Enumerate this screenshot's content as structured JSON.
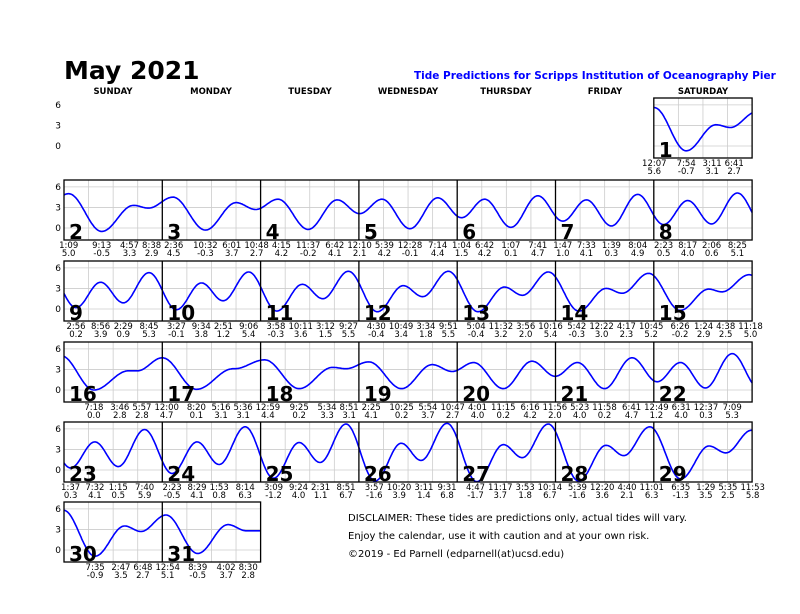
{
  "header": {
    "title": "May 2021",
    "subtitle": "Tide Predictions for Scripps Institution of Oceanography Pier",
    "weekdays": [
      "SUNDAY",
      "MONDAY",
      "TUESDAY",
      "WEDNESDAY",
      "THURSDAY",
      "FRIDAY",
      "SATURDAY"
    ]
  },
  "disclaimer": {
    "line1": "DISCLAIMER: These tides are predictions only, actual tides will vary.",
    "line2": "Enjoy the calendar, use it with caution and at your own risk.",
    "line3": "©2019 - Ed Parnell (edparnell(at)ucsd.edu)"
  },
  "colors": {
    "curve": "#0000ff",
    "grid": "#cccccc",
    "subtitle": "#0000ff"
  },
  "chart_data": {
    "type": "line",
    "yticks": [
      6,
      3,
      0
    ],
    "ylim": [
      -1.75,
      7
    ],
    "grid": true,
    "first_weekday": "SATURDAY",
    "days": [
      {
        "day": 1,
        "extremes": [
          [
            "12:07",
            5.6
          ],
          [
            "7:54",
            -0.7
          ],
          [
            "3:11",
            3.1
          ],
          [
            "6:41",
            2.7
          ]
        ]
      },
      {
        "day": 2,
        "extremes": [
          [
            "1:09",
            5.0
          ],
          [
            "9:13",
            -0.5
          ],
          [
            "4:57",
            3.3
          ],
          [
            "8:38",
            2.9
          ]
        ]
      },
      {
        "day": 3,
        "extremes": [
          [
            "2:36",
            4.5
          ],
          [
            "10:32",
            -0.3
          ],
          [
            "6:01",
            3.7
          ],
          [
            "10:48",
            2.7
          ]
        ]
      },
      {
        "day": 4,
        "extremes": [
          [
            "4:15",
            4.2
          ],
          [
            "11:37",
            -0.2
          ],
          [
            "6:42",
            4.1
          ]
        ]
      },
      {
        "day": 5,
        "extremes": [
          [
            "12:10",
            2.1
          ],
          [
            "5:39",
            4.2
          ],
          [
            "12:28",
            -0.1
          ],
          [
            "7:14",
            4.4
          ]
        ]
      },
      {
        "day": 6,
        "extremes": [
          [
            "1:04",
            1.5
          ],
          [
            "6:42",
            4.2
          ],
          [
            "1:07",
            0.1
          ],
          [
            "7:41",
            4.7
          ]
        ]
      },
      {
        "day": 7,
        "extremes": [
          [
            "1:47",
            1.0
          ],
          [
            "7:33",
            4.1
          ],
          [
            "1:39",
            0.3
          ],
          [
            "8:04",
            4.9
          ]
        ]
      },
      {
        "day": 8,
        "extremes": [
          [
            "2:23",
            0.5
          ],
          [
            "8:17",
            4.0
          ],
          [
            "2:06",
            0.6
          ],
          [
            "8:25",
            5.1
          ]
        ]
      },
      {
        "day": 9,
        "extremes": [
          [
            "2:56",
            0.2
          ],
          [
            "8:56",
            3.9
          ],
          [
            "2:29",
            0.9
          ],
          [
            "8:45",
            5.3
          ]
        ]
      },
      {
        "day": 10,
        "extremes": [
          [
            "3:27",
            -0.1
          ],
          [
            "9:34",
            3.8
          ],
          [
            "2:51",
            1.2
          ],
          [
            "9:06",
            5.4
          ]
        ]
      },
      {
        "day": 11,
        "extremes": [
          [
            "3:58",
            -0.3
          ],
          [
            "10:11",
            3.6
          ],
          [
            "3:12",
            1.5
          ],
          [
            "9:27",
            5.5
          ]
        ]
      },
      {
        "day": 12,
        "extremes": [
          [
            "4:30",
            -0.4
          ],
          [
            "10:49",
            3.4
          ],
          [
            "3:34",
            1.8
          ],
          [
            "9:51",
            5.5
          ]
        ]
      },
      {
        "day": 13,
        "extremes": [
          [
            "5:04",
            -0.4
          ],
          [
            "11:32",
            3.2
          ],
          [
            "3:56",
            2.0
          ],
          [
            "10:16",
            5.4
          ]
        ]
      },
      {
        "day": 14,
        "extremes": [
          [
            "5:42",
            -0.3
          ],
          [
            "12:22",
            3.0
          ],
          [
            "4:17",
            2.3
          ],
          [
            "10:45",
            5.2
          ]
        ]
      },
      {
        "day": 15,
        "extremes": [
          [
            "6:26",
            -0.2
          ],
          [
            "1:24",
            2.9
          ],
          [
            "4:38",
            2.5
          ],
          [
            "11:18",
            5.0
          ]
        ]
      },
      {
        "day": 16,
        "extremes": [
          [
            "7:18",
            -0.0
          ],
          [
            "3:46",
            2.8
          ],
          [
            "5:57",
            2.8
          ]
        ]
      },
      {
        "day": 17,
        "extremes": [
          [
            "12:00",
            4.7
          ],
          [
            "8:20",
            0.1
          ],
          [
            "5:16",
            3.1
          ],
          [
            "5:36",
            3.1
          ]
        ]
      },
      {
        "day": 18,
        "extremes": [
          [
            "12:59",
            4.4
          ],
          [
            "9:25",
            0.2
          ],
          [
            "5:34",
            3.3
          ],
          [
            "8:51",
            3.1
          ]
        ]
      },
      {
        "day": 19,
        "extremes": [
          [
            "2:25",
            4.1
          ],
          [
            "10:25",
            0.2
          ],
          [
            "5:54",
            3.7
          ],
          [
            "10:47",
            2.7
          ]
        ]
      },
      {
        "day": 20,
        "extremes": [
          [
            "4:01",
            4.0
          ],
          [
            "11:15",
            0.2
          ],
          [
            "6:16",
            4.2
          ],
          [
            "11:56",
            2.0
          ]
        ]
      },
      {
        "day": 21,
        "extremes": [
          [
            "5:23",
            4.0
          ],
          [
            "11:58",
            0.2
          ],
          [
            "6:41",
            4.7
          ]
        ]
      },
      {
        "day": 22,
        "extremes": [
          [
            "12:49",
            1.2
          ],
          [
            "6:31",
            4.0
          ],
          [
            "12:37",
            0.3
          ],
          [
            "7:09",
            5.3
          ]
        ]
      },
      {
        "day": 23,
        "extremes": [
          [
            "1:37",
            0.3
          ],
          [
            "7:32",
            4.1
          ],
          [
            "1:15",
            0.5
          ],
          [
            "7:40",
            5.9
          ]
        ]
      },
      {
        "day": 24,
        "extremes": [
          [
            "2:23",
            -0.5
          ],
          [
            "8:29",
            4.1
          ],
          [
            "1:53",
            0.8
          ],
          [
            "8:14",
            6.3
          ]
        ]
      },
      {
        "day": 25,
        "extremes": [
          [
            "3:09",
            -1.2
          ],
          [
            "9:24",
            4.0
          ],
          [
            "2:31",
            1.1
          ],
          [
            "8:51",
            6.7
          ]
        ]
      },
      {
        "day": 26,
        "extremes": [
          [
            "3:57",
            -1.6
          ],
          [
            "10:20",
            3.9
          ],
          [
            "3:11",
            1.4
          ],
          [
            "9:31",
            6.8
          ]
        ]
      },
      {
        "day": 27,
        "extremes": [
          [
            "4:47",
            -1.7
          ],
          [
            "11:17",
            3.7
          ],
          [
            "3:53",
            1.8
          ],
          [
            "10:14",
            6.7
          ]
        ]
      },
      {
        "day": 28,
        "extremes": [
          [
            "5:39",
            -1.6
          ],
          [
            "12:20",
            3.6
          ],
          [
            "4:40",
            2.1
          ],
          [
            "11:01",
            6.3
          ]
        ]
      },
      {
        "day": 29,
        "extremes": [
          [
            "6:35",
            -1.3
          ],
          [
            "1:29",
            3.5
          ],
          [
            "5:35",
            2.5
          ],
          [
            "11:53",
            5.8
          ]
        ]
      },
      {
        "day": 30,
        "extremes": [
          [
            "7:35",
            -0.9
          ],
          [
            "2:47",
            3.5
          ],
          [
            "6:48",
            2.7
          ]
        ]
      },
      {
        "day": 31,
        "extremes": [
          [
            "12:54",
            5.1
          ],
          [
            "8:39",
            -0.5
          ],
          [
            "4:02",
            3.7
          ],
          [
            "8:30",
            2.8
          ]
        ]
      }
    ]
  }
}
